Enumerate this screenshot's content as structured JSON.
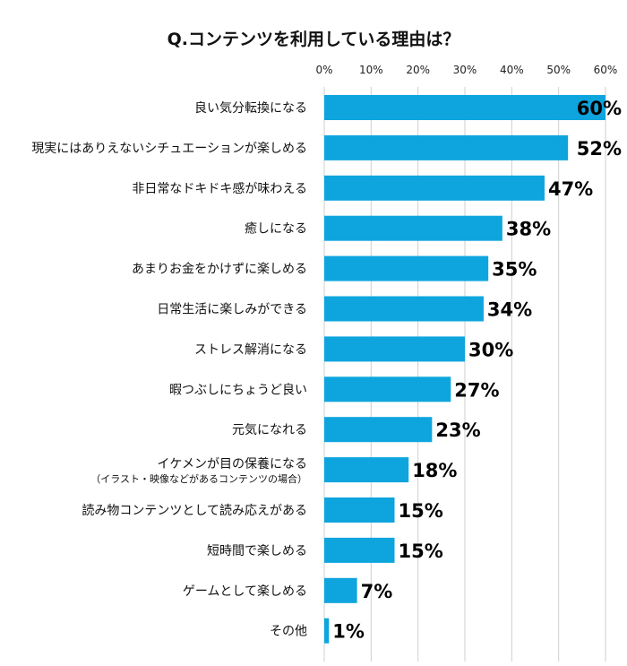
{
  "chart_data": {
    "type": "bar",
    "orientation": "horizontal",
    "title": "Q.コンテンツを利用している理由は？",
    "xlim": [
      0,
      60
    ],
    "x_ticks": [
      "0%",
      "10%",
      "20%",
      "30%",
      "40%",
      "50%",
      "60%"
    ],
    "x_tick_values": [
      0,
      10,
      20,
      30,
      40,
      50,
      60
    ],
    "grid": true,
    "bar_color": "#0ea5de",
    "categories": [
      "良い気分転換になる",
      "現実にはありえないシチュエーションが楽しめる",
      "非日常なドキドキ感が味わえる",
      "癒しになる",
      "あまりお金をかけずに楽しめる",
      "日常生活に楽しみができる",
      "ストレス解消になる",
      "暇つぶしにちょうど良い",
      "元気になれる",
      "イケメンが目の保養になる",
      "読み物コンテンツとして読み応えがある",
      "短時間で楽しめる",
      "ゲームとして楽しめる",
      "その他"
    ],
    "category_notes": [
      "",
      "",
      "",
      "",
      "",
      "",
      "",
      "",
      "",
      "（イラスト・映像などがあるコンテンツの場合）",
      "",
      "",
      "",
      ""
    ],
    "values": [
      60,
      52,
      47,
      38,
      35,
      34,
      30,
      27,
      23,
      18,
      15,
      15,
      7,
      1
    ],
    "value_labels": [
      "60%",
      "52%",
      "47%",
      "38%",
      "35%",
      "34%",
      "30%",
      "27%",
      "23%",
      "18%",
      "15%",
      "15%",
      "7%",
      "1%"
    ]
  }
}
